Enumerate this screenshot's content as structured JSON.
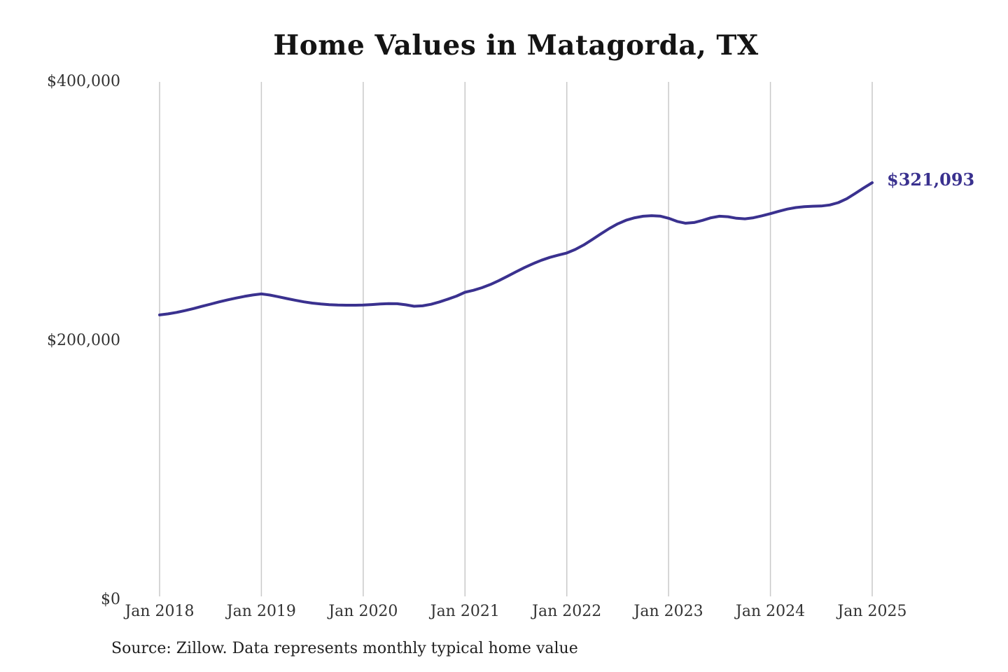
{
  "chart_data": {
    "type": "line",
    "title": "Home Values in Matagorda, TX",
    "xlabel": "",
    "ylabel": "",
    "x": [
      "2018-01",
      "2018-02",
      "2018-03",
      "2018-04",
      "2018-05",
      "2018-06",
      "2018-07",
      "2018-08",
      "2018-09",
      "2018-10",
      "2018-11",
      "2018-12",
      "2019-01",
      "2019-02",
      "2019-03",
      "2019-04",
      "2019-05",
      "2019-06",
      "2019-07",
      "2019-08",
      "2019-09",
      "2019-10",
      "2019-11",
      "2019-12",
      "2020-01",
      "2020-02",
      "2020-03",
      "2020-04",
      "2020-05",
      "2020-06",
      "2020-07",
      "2020-08",
      "2020-09",
      "2020-10",
      "2020-11",
      "2020-12",
      "2021-01",
      "2021-02",
      "2021-03",
      "2021-04",
      "2021-05",
      "2021-06",
      "2021-07",
      "2021-08",
      "2021-09",
      "2021-10",
      "2021-11",
      "2021-12",
      "2022-01",
      "2022-02",
      "2022-03",
      "2022-04",
      "2022-05",
      "2022-06",
      "2022-07",
      "2022-08",
      "2022-09",
      "2022-10",
      "2022-11",
      "2022-12",
      "2023-01",
      "2023-02",
      "2023-03",
      "2023-04",
      "2023-05",
      "2023-06",
      "2023-07",
      "2023-08",
      "2023-09",
      "2023-10",
      "2023-11",
      "2023-12",
      "2024-01",
      "2024-02",
      "2024-03",
      "2024-04",
      "2024-05",
      "2024-06",
      "2024-07",
      "2024-08",
      "2024-09",
      "2024-10",
      "2024-11",
      "2024-12",
      "2025-01"
    ],
    "series": [
      {
        "name": "Monthly typical home value",
        "values": [
          219000,
          219800,
          220900,
          222300,
          223900,
          225600,
          227300,
          229000,
          230600,
          232000,
          233300,
          234400,
          235200,
          234300,
          233000,
          231600,
          230300,
          229100,
          228100,
          227400,
          226900,
          226600,
          226500,
          226500,
          226600,
          227000,
          227400,
          227700,
          227600,
          226800,
          225700,
          226000,
          227200,
          229000,
          231200,
          233500,
          236500,
          238000,
          240000,
          242500,
          245500,
          248800,
          252200,
          255500,
          258500,
          261200,
          263400,
          265200,
          266800,
          269500,
          273000,
          277200,
          281500,
          285700,
          289300,
          292100,
          294000,
          295200,
          295600,
          295300,
          293600,
          291200,
          289800,
          290300,
          292000,
          294000,
          295200,
          294800,
          293600,
          293200,
          294000,
          295500,
          297200,
          299000,
          300700,
          301900,
          302600,
          302900,
          303100,
          303900,
          305700,
          308700,
          312800,
          317100,
          321093
        ]
      }
    ],
    "x_tick_labels": [
      "Jan 2018",
      "Jan 2019",
      "Jan 2020",
      "Jan 2021",
      "Jan 2022",
      "Jan 2023",
      "Jan 2024",
      "Jan 2025"
    ],
    "y_tick_values": [
      0,
      200000,
      400000
    ],
    "y_tick_labels": [
      "$0",
      "$200,000",
      "$400,000"
    ],
    "ylim": [
      0,
      400000
    ],
    "grid": "vertical-only",
    "legend": "none",
    "line_color": "#3a318f",
    "gridline_color": "#c9c9c9",
    "tick_label_color": "#333333",
    "end_label": "$321,093",
    "end_value": 321093
  },
  "footer": {
    "source": "Source: Zillow. Data represents monthly typical home value"
  }
}
